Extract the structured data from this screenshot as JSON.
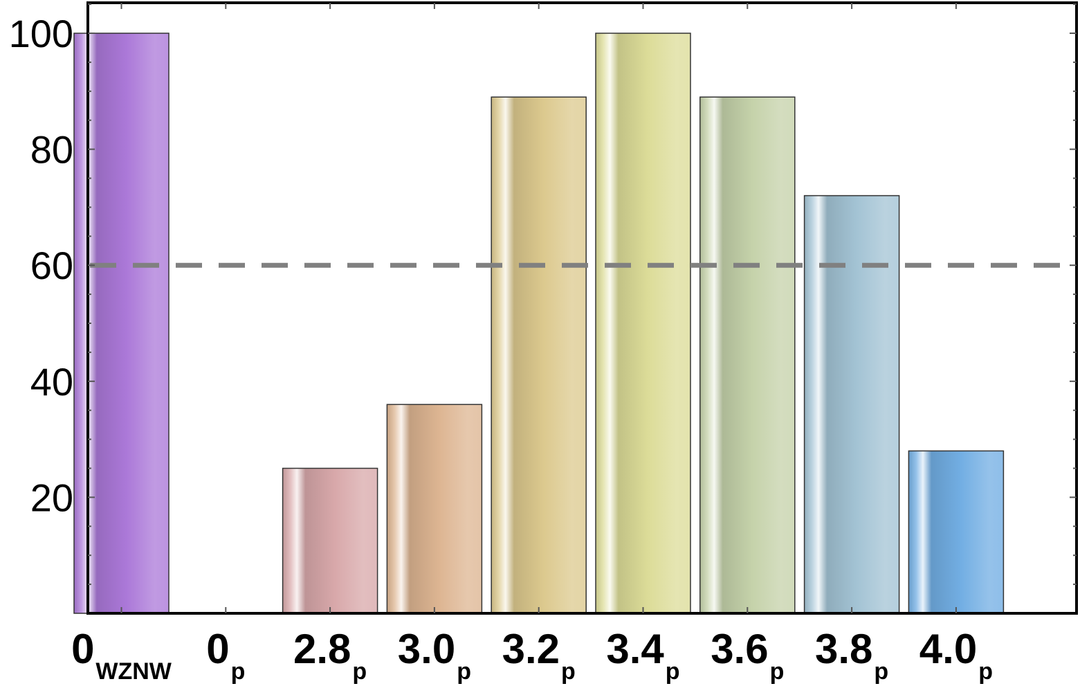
{
  "chart_data": {
    "type": "bar",
    "categories": [
      {
        "main": "0",
        "sub": "WZNW"
      },
      {
        "main": "0",
        "sub": "p"
      },
      {
        "main": "2.8",
        "sub": "p"
      },
      {
        "main": "3.0",
        "sub": "p"
      },
      {
        "main": "3.2",
        "sub": "p"
      },
      {
        "main": "3.4",
        "sub": "p"
      },
      {
        "main": "3.6",
        "sub": "p"
      },
      {
        "main": "3.8",
        "sub": "p"
      },
      {
        "main": "4.0",
        "sub": "p"
      }
    ],
    "values": [
      100,
      0,
      25,
      36,
      89,
      100,
      89,
      72,
      28
    ],
    "colors": [
      "#ab78d8",
      "#ffffff",
      "#d8a8aa",
      "#ddb592",
      "#dcc98e",
      "#dcdc98",
      "#c5d2aa",
      "#a3c3d4",
      "#72aee3"
    ],
    "yticks": [
      "20",
      "40",
      "60",
      "80",
      "100"
    ],
    "ylim": [
      0,
      105
    ],
    "threshold": 60,
    "threshold_color": "#808080",
    "title": "",
    "xlabel": "",
    "ylabel": "",
    "grid": false,
    "legend": "none"
  }
}
